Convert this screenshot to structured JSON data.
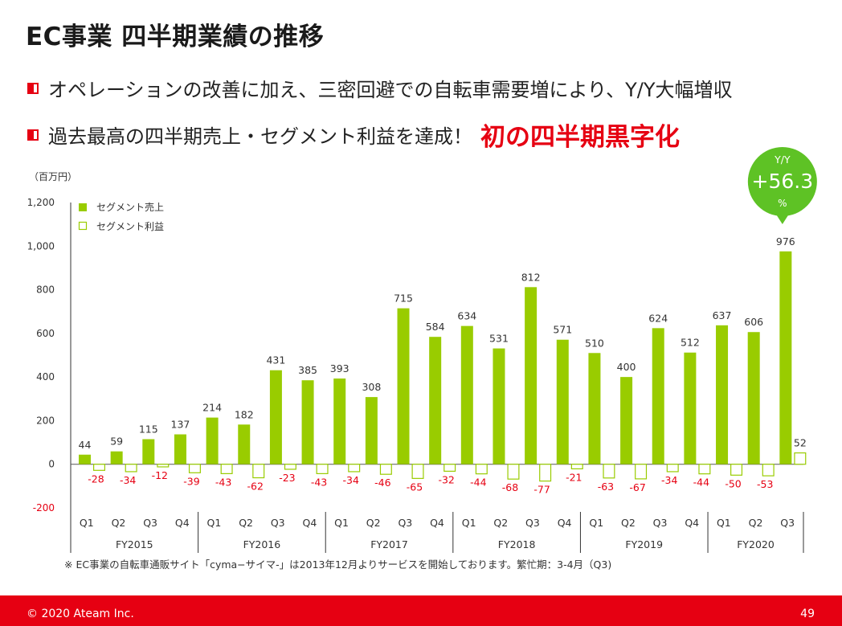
{
  "page": {
    "title": "EC事業 四半期業績の推移",
    "bullets": [
      {
        "text": "オペレーションの改善に加え、三密回避での自転車需要増により、Y/Y大幅増収"
      },
      {
        "text": "過去最高の四半期売上・セグメント利益を達成！",
        "highlight": "初の四半期黒字化"
      }
    ],
    "footnote": "※ EC事業の自転車通販サイト「cyma−サイマ-」は2013年12月よりサービスを開始しております。繁忙期：3-4月（Q3)",
    "footer": {
      "copyright": "© 2020 Ateam Inc.",
      "page_number": "49"
    }
  },
  "chart_data": {
    "type": "bar",
    "unit_label": "（百万円）",
    "ylim": [
      -200,
      1200
    ],
    "yticks": [
      -200,
      0,
      200,
      400,
      600,
      800,
      1000,
      1200
    ],
    "ytick_labels": [
      "-200",
      "0",
      "200",
      "400",
      "600",
      "800",
      "1,000",
      "1,200"
    ],
    "categories": [
      "Q1",
      "Q2",
      "Q3",
      "Q4",
      "Q1",
      "Q2",
      "Q3",
      "Q4",
      "Q1",
      "Q2",
      "Q3",
      "Q4",
      "Q1",
      "Q2",
      "Q3",
      "Q4",
      "Q1",
      "Q2",
      "Q3",
      "Q4",
      "Q1",
      "Q2",
      "Q3"
    ],
    "fiscal_years": [
      "FY2015",
      "FY2016",
      "FY2017",
      "FY2018",
      "FY2019",
      "FY2020"
    ],
    "fiscal_year_sizes": [
      4,
      4,
      4,
      4,
      4,
      3
    ],
    "series": [
      {
        "name": "セグメント売上",
        "style": "filled",
        "color": "#99cc00",
        "values": [
          44,
          59,
          115,
          137,
          214,
          182,
          431,
          385,
          393,
          308,
          715,
          584,
          634,
          531,
          812,
          571,
          510,
          400,
          624,
          512,
          637,
          606,
          976
        ]
      },
      {
        "name": "セグメント利益",
        "style": "outline",
        "color": "#99cc00",
        "label_color": "#e60012",
        "values": [
          -28,
          -34,
          -12,
          -39,
          -43,
          -62,
          -23,
          -43,
          -34,
          -46,
          -65,
          -32,
          -44,
          -68,
          -77,
          -21,
          -63,
          -67,
          -34,
          -44,
          -50,
          -53,
          52
        ]
      }
    ],
    "callout": {
      "label_top": "Y/Y",
      "value": "+56.3",
      "unit": "%",
      "color": "#5ec225"
    },
    "legend_position": "top-left",
    "grid": false
  }
}
